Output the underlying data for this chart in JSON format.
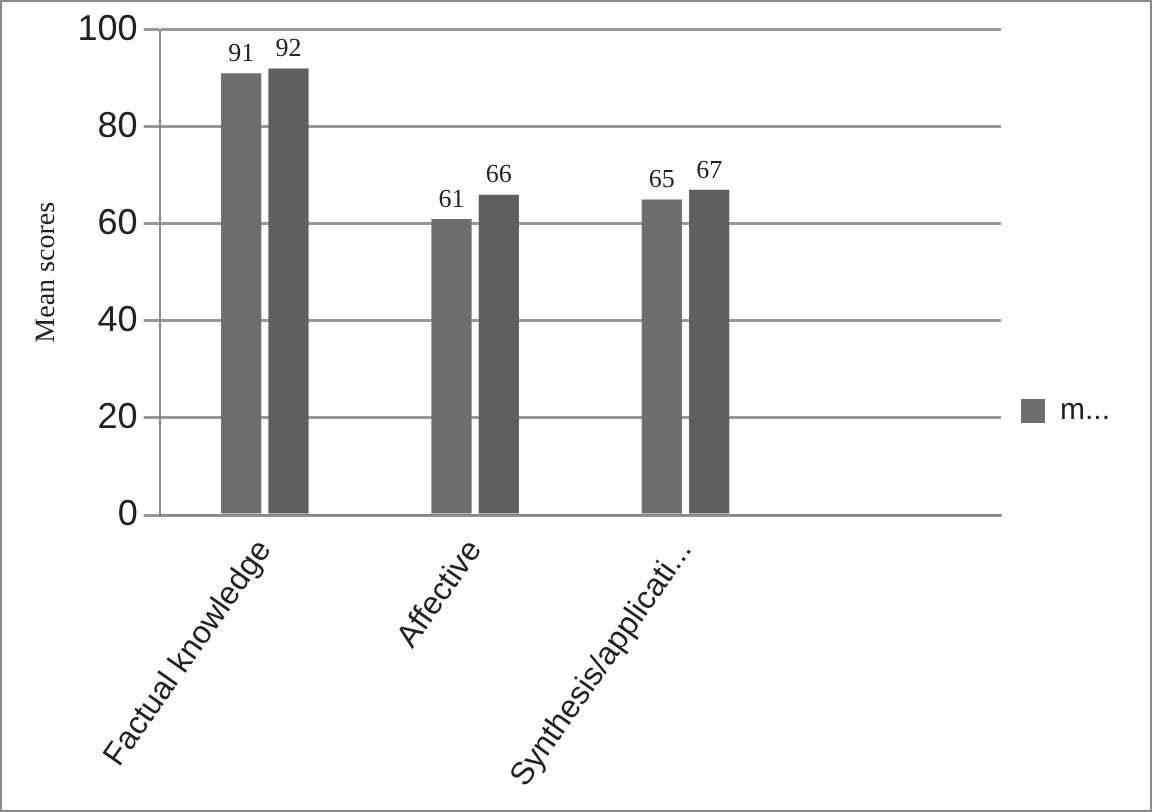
{
  "chart_data": {
    "type": "bar",
    "ylabel": "Mean scores",
    "categories": [
      "Factual knowledge",
      "Affective",
      "Synthesis/applicati...",
      null
    ],
    "series": [
      {
        "name": "m...",
        "color": "#6e6e6e",
        "values": [
          91,
          61,
          65,
          null
        ]
      },
      {
        "color": "#5f5f5f",
        "values": [
          92,
          66,
          67,
          null
        ]
      }
    ],
    "ylim": [
      0,
      100
    ],
    "yticks": [
      0,
      20,
      40,
      60,
      80,
      100
    ],
    "grid": "y",
    "legend": "right",
    "data_labels": true
  }
}
